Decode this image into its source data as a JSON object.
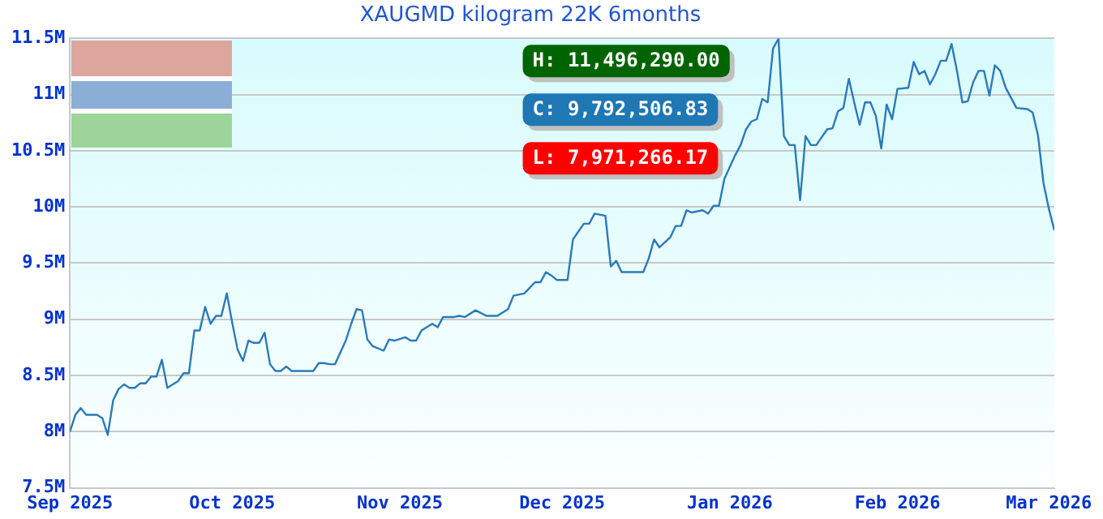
{
  "chart_data": {
    "type": "line",
    "title": "XAUGMD kilogram 22K 6months",
    "x": [
      "2025-09-01",
      "2025-09-02",
      "2025-09-03",
      "2025-09-04",
      "2025-09-06",
      "2025-09-07",
      "2025-09-08",
      "2025-09-09",
      "2025-09-10",
      "2025-09-11",
      "2025-09-12",
      "2025-09-13",
      "2025-09-14",
      "2025-09-15",
      "2025-09-16",
      "2025-09-17",
      "2025-09-18",
      "2025-09-19",
      "2025-09-21",
      "2025-09-22",
      "2025-09-23",
      "2025-09-24",
      "2025-09-25",
      "2025-09-26",
      "2025-09-27",
      "2025-09-28",
      "2025-09-29",
      "2025-09-30",
      "2025-10-01",
      "2025-10-02",
      "2025-10-03",
      "2025-10-04",
      "2025-10-05",
      "2025-10-06",
      "2025-10-07",
      "2025-10-08",
      "2025-10-09",
      "2025-10-10",
      "2025-10-11",
      "2025-10-12",
      "2025-10-16",
      "2025-10-17",
      "2025-10-18",
      "2025-10-19",
      "2025-10-20",
      "2025-10-22",
      "2025-10-23",
      "2025-10-24",
      "2025-10-25",
      "2025-10-26",
      "2025-10-27",
      "2025-10-29",
      "2025-10-30",
      "2025-10-31",
      "2025-11-02",
      "2025-11-03",
      "2025-11-04",
      "2025-11-05",
      "2025-11-07",
      "2025-11-08",
      "2025-11-09",
      "2025-11-11",
      "2025-11-12",
      "2025-11-13",
      "2025-11-15",
      "2025-11-17",
      "2025-11-19",
      "2025-11-21",
      "2025-11-22",
      "2025-11-24",
      "2025-11-26",
      "2025-11-27",
      "2025-11-28",
      "2025-11-29",
      "2025-11-30",
      "2025-12-02",
      "2025-12-03",
      "2025-12-05",
      "2025-12-06",
      "2025-12-07",
      "2025-12-09",
      "2025-12-10",
      "2025-12-11",
      "2025-12-12",
      "2025-12-16",
      "2025-12-17",
      "2025-12-18",
      "2025-12-19",
      "2025-12-21",
      "2025-12-22",
      "2025-12-23",
      "2025-12-24",
      "2025-12-25",
      "2025-12-27",
      "2025-12-28",
      "2025-12-29",
      "2025-12-30",
      "2025-12-31",
      "2026-01-02",
      "2026-01-03",
      "2026-01-04",
      "2026-01-05",
      "2026-01-06",
      "2026-01-07",
      "2026-01-08",
      "2026-01-09",
      "2026-01-10",
      "2026-01-11",
      "2026-01-12",
      "2026-01-13",
      "2026-01-14",
      "2026-01-15",
      "2026-01-16",
      "2026-01-17",
      "2026-01-19",
      "2026-01-20",
      "2026-01-21",
      "2026-01-22",
      "2026-01-23",
      "2026-01-24",
      "2026-01-25",
      "2026-01-26",
      "2026-01-27",
      "2026-01-28",
      "2026-01-29",
      "2026-01-30",
      "2026-01-31",
      "2026-02-01",
      "2026-02-03",
      "2026-02-04",
      "2026-02-05",
      "2026-02-06",
      "2026-02-07",
      "2026-02-08",
      "2026-02-09",
      "2026-02-10",
      "2026-02-11",
      "2026-02-12",
      "2026-02-13",
      "2026-02-14",
      "2026-02-15",
      "2026-02-16",
      "2026-02-17",
      "2026-02-18",
      "2026-02-19",
      "2026-02-20",
      "2026-02-21",
      "2026-02-23",
      "2026-02-25",
      "2026-02-26",
      "2026-02-27",
      "2026-02-28",
      "2026-03-01",
      "2026-03-02"
    ],
    "series": [
      {
        "color": "#2a7ab8",
        "values": [
          8000000,
          8150000,
          8210000,
          8150000,
          8150000,
          8120000,
          7971266.17,
          8280000,
          8380000,
          8420000,
          8390000,
          8390000,
          8430000,
          8430000,
          8490000,
          8490000,
          8640000,
          8390000,
          8450000,
          8520000,
          8520000,
          8900000,
          8900000,
          9110000,
          8960000,
          9030000,
          9030000,
          9230000,
          8970000,
          8730000,
          8630000,
          8810000,
          8790000,
          8790000,
          8880000,
          8600000,
          8540000,
          8540000,
          8580000,
          8540000,
          8540000,
          8610000,
          8610000,
          8600000,
          8600000,
          8810000,
          8960000,
          9090000,
          9080000,
          8820000,
          8760000,
          8720000,
          8820000,
          8810000,
          8840000,
          8810000,
          8810000,
          8900000,
          8960000,
          8930000,
          9020000,
          9020000,
          9030000,
          9020000,
          9080000,
          9030000,
          9030000,
          9090000,
          9210000,
          9230000,
          9330000,
          9330000,
          9420000,
          9390000,
          9350000,
          9350000,
          9710000,
          9850000,
          9850000,
          9940000,
          9920000,
          9470000,
          9520000,
          9420000,
          9420000,
          9540000,
          9710000,
          9640000,
          9730000,
          9830000,
          9830000,
          9970000,
          9950000,
          9970000,
          9940000,
          10010000,
          10010000,
          10250000,
          10460000,
          10550000,
          10690000,
          10760000,
          10780000,
          10960000,
          10930000,
          11410000,
          11496290,
          10630000,
          10550000,
          10550000,
          10060000,
          10630000,
          10550000,
          10550000,
          10690000,
          10700000,
          10850000,
          10880000,
          11140000,
          10930000,
          10730000,
          10930000,
          10930000,
          10810000,
          10520000,
          10910000,
          10780000,
          11050000,
          11060000,
          11290000,
          11180000,
          11210000,
          11090000,
          11180000,
          11300000,
          11300000,
          11450000,
          11210000,
          10930000,
          10940000,
          11110000,
          11210000,
          11210000,
          10990000,
          11260000,
          11210000,
          11060000,
          10880000,
          10870000,
          10840000,
          10630000,
          10210000,
          9980000,
          9792506.83
        ]
      }
    ],
    "xlim": [
      "2025-09-01",
      "2026-03-02"
    ],
    "xticks": [
      {
        "value": "2025-09-01",
        "label": "Sep 2025"
      },
      {
        "value": "2025-10-01",
        "label": "Oct 2025"
      },
      {
        "value": "2025-11-01",
        "label": "Nov 2025"
      },
      {
        "value": "2025-12-01",
        "label": "Dec 2025"
      },
      {
        "value": "2026-01-01",
        "label": "Jan 2026"
      },
      {
        "value": "2026-02-01",
        "label": "Feb 2026"
      },
      {
        "value": "2026-03-01",
        "label": "Mar 2026"
      }
    ],
    "ylim": [
      7500000,
      11500000
    ],
    "yticks": [
      {
        "value": 7500000,
        "label": "7.5M"
      },
      {
        "value": 8000000,
        "label": "8M"
      },
      {
        "value": 8500000,
        "label": "8.5M"
      },
      {
        "value": 9000000,
        "label": "9M"
      },
      {
        "value": 9500000,
        "label": "9.5M"
      },
      {
        "value": 10000000,
        "label": "10M"
      },
      {
        "value": 10500000,
        "label": "10.5M"
      },
      {
        "value": 11000000,
        "label": "11M"
      },
      {
        "value": 11500000,
        "label": "11.5M"
      }
    ],
    "annotations": [
      "H: 11,496,290.00",
      "C: 9,792,506.83",
      "L: 7,971,266.17"
    ],
    "grid": "y",
    "legend": false,
    "marker": "none",
    "line_style": "solid"
  }
}
